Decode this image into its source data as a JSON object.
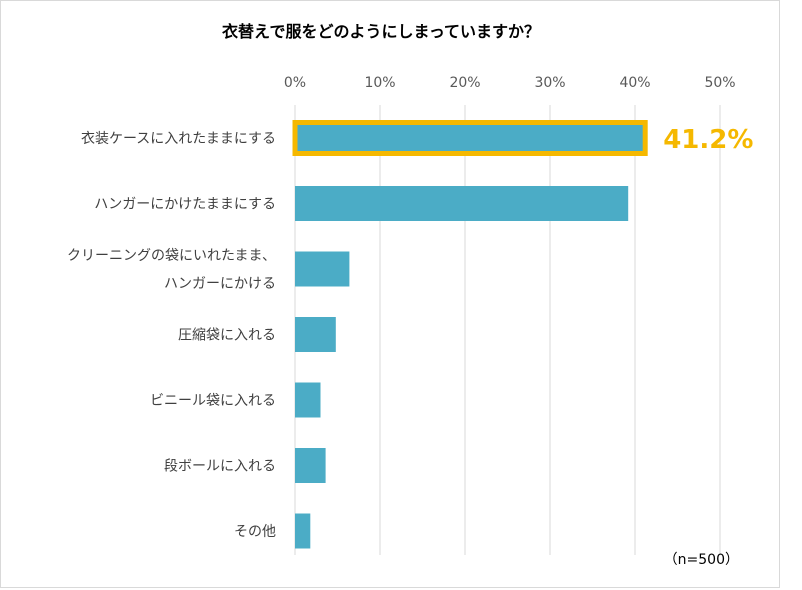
{
  "chart_data": {
    "type": "bar",
    "orientation": "horizontal",
    "title": "衣替えで服をどのようにしまっていますか？",
    "categories": [
      [
        "衣装ケースに入れたままにする"
      ],
      [
        "ハンガーにかけたままにする"
      ],
      [
        "クリーニングの袋にいれたまま、",
        "ハンガーにかける"
      ],
      [
        "圧縮袋に入れる"
      ],
      [
        "ビニール袋に入れる"
      ],
      [
        "段ボールに入れる"
      ],
      [
        "その他"
      ]
    ],
    "values": [
      41.2,
      39.2,
      6.4,
      4.8,
      3.0,
      3.6,
      1.8
    ],
    "x_ticks": [
      "0%",
      "10%",
      "20%",
      "30%",
      "40%",
      "50%"
    ],
    "xlim": [
      0,
      50
    ],
    "grid": true,
    "highlight": {
      "index": 0,
      "label": "41.2%",
      "color": "#f5b800"
    },
    "note": "（n=500）",
    "bar_color": "#4bacc6",
    "grid_color": "#d9d9d9"
  }
}
